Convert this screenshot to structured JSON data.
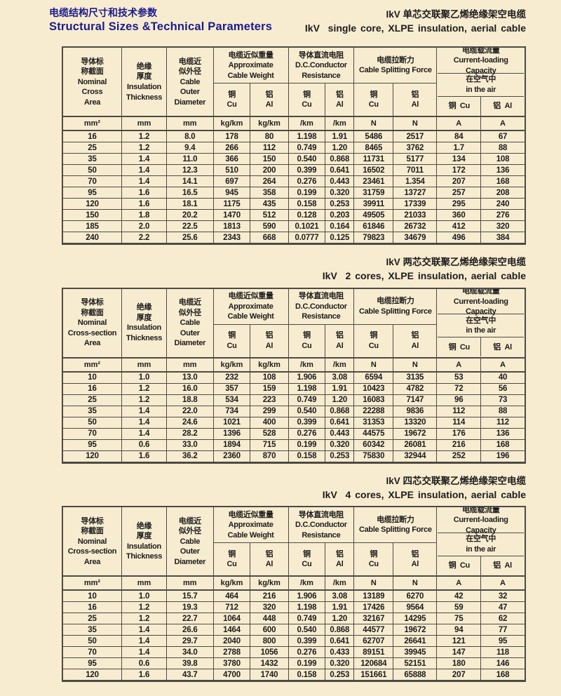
{
  "page": {
    "title_zh": "电缆结构尺寸和技术参数",
    "title_en": "Structural Sizes &Technical Parameters"
  },
  "sections": [
    {
      "title_zh": "IkV 单芯交联聚乙烯绝缘架空电缆",
      "title_en": "IkV  single core, XLPE insulation, aerial cable",
      "header": {
        "nominal": "导体标\n称截面\nNominal\nCross\nArea",
        "insulation": "绝缘\n厚度\nInsulation\nThickness",
        "diameter": "电缆近\n似外径\nCable\nOuter\nDiameter",
        "weight_group": "电缆近似重量\nApproximate\nCable Weight",
        "resistance_group": "导体直流电阻\nD.C.Conductor\nResistance",
        "force_group": "电缆拉断力\nCable Splitting Force",
        "capacity_group": "电缆载流量\nCurrent-loading Capacity",
        "in_air": "在空气中\nin the air",
        "cu": "铜\nCu",
        "al": "铝\nAl",
        "cu_inline": "铜  Cu",
        "al_inline": "铝  Al",
        "units": [
          "mm²",
          "mm",
          "mm",
          "kg/km",
          "kg/km",
          "/km",
          "/km",
          "N",
          "N",
          "A",
          "A"
        ]
      },
      "rows": [
        [
          "16",
          "1.2",
          "8.0",
          "178",
          "80",
          "1.198",
          "1.91",
          "5486",
          "2517",
          "84",
          "67"
        ],
        [
          "25",
          "1.2",
          "9.4",
          "266",
          "112",
          "0.749",
          "1.20",
          "8465",
          "3762",
          "1.7",
          "88"
        ],
        [
          "35",
          "1.4",
          "11.0",
          "366",
          "150",
          "0.540",
          "0.868",
          "11731",
          "5177",
          "134",
          "108"
        ],
        [
          "50",
          "1.4",
          "12.3",
          "510",
          "200",
          "0.399",
          "0.641",
          "16502",
          "7011",
          "172",
          "136"
        ],
        [
          "70",
          "1.4",
          "14.1",
          "697",
          "264",
          "0.276",
          "0.443",
          "23461",
          "1.354",
          "207",
          "168"
        ],
        [
          "95",
          "1.6",
          "16.5",
          "945",
          "358",
          "0.199",
          "0.320",
          "31759",
          "13727",
          "257",
          "208"
        ],
        [
          "120",
          "1.6",
          "18.1",
          "1175",
          "435",
          "0.158",
          "0.253",
          "39911",
          "17339",
          "295",
          "240"
        ],
        [
          "150",
          "1.8",
          "20.2",
          "1470",
          "512",
          "0.128",
          "0.203",
          "49505",
          "21033",
          "360",
          "276"
        ],
        [
          "185",
          "2.0",
          "22.5",
          "1813",
          "590",
          "0.1021",
          "0.164",
          "61846",
          "26732",
          "412",
          "320"
        ],
        [
          "240",
          "2.2",
          "25.6",
          "2343",
          "668",
          "0.0777",
          "0.125",
          "79823",
          "34679",
          "496",
          "384"
        ]
      ]
    },
    {
      "title_zh": "IkV 两芯交联聚乙烯绝缘架空电缆",
      "title_en": "IkV  2 cores, XLPE insulation, aerial cable",
      "header": {
        "nominal": "导体标\n称截面\nNominal\nCross-section\nArea",
        "insulation": "绝缘\n厚度\nInsulation\nThickness",
        "diameter": "电缆近\n似外径\nCable\nOuter\nDiameter",
        "weight_group": "电缆近似重量\nApproximate\nCable Weight",
        "resistance_group": "导体直流电阻\nD.C.Conductor\nResistance",
        "force_group": "电缆拉断力\nCable Splitting Force",
        "capacity_group": "电缆载流量\nCurrent-loading Capacity",
        "in_air": "在空气中\nin the air",
        "cu": "铜\nCu",
        "al": "铝\nAl",
        "cu_inline": "铜  Cu",
        "al_inline": "铝  Al",
        "units": [
          "mm²",
          "mm",
          "mm",
          "kg/km",
          "kg/km",
          "/km",
          "/km",
          "N",
          "N",
          "A",
          "A"
        ]
      },
      "rows": [
        [
          "10",
          "1.0",
          "13.0",
          "232",
          "108",
          "1.906",
          "3.08",
          "6594",
          "3135",
          "53",
          "40"
        ],
        [
          "16",
          "1.2",
          "16.0",
          "357",
          "159",
          "1.198",
          "1.91",
          "10423",
          "4782",
          "72",
          "56"
        ],
        [
          "25",
          "1.2",
          "18.8",
          "534",
          "223",
          "0.749",
          "1.20",
          "16083",
          "7147",
          "96",
          "73"
        ],
        [
          "35",
          "1.4",
          "22.0",
          "734",
          "299",
          "0.540",
          "0.868",
          "22288",
          "9836",
          "112",
          "88"
        ],
        [
          "50",
          "1.4",
          "24.6",
          "1021",
          "400",
          "0.399",
          "0.641",
          "31353",
          "13320",
          "114",
          "112"
        ],
        [
          "70",
          "1.4",
          "28.2",
          "1396",
          "528",
          "0.276",
          "0.443",
          "44575",
          "19672",
          "176",
          "136"
        ],
        [
          "95",
          "0.6",
          "33.0",
          "1894",
          "715",
          "0.199",
          "0.320",
          "60342",
          "26081",
          "216",
          "168"
        ],
        [
          "120",
          "1.6",
          "36.2",
          "2360",
          "870",
          "0.158",
          "0.253",
          "75830",
          "32944",
          "252",
          "196"
        ]
      ]
    },
    {
      "title_zh": "IkV 四芯交联聚乙烯绝缘架空电缆",
      "title_en": "IkV  4 cores, XLPE insulation, aerial cable",
      "header": {
        "nominal": "导体标\n称截面\nNominal\nCross-section\nArea",
        "insulation": "绝缘\n厚度\nInsulation\nThickness",
        "diameter": "电缆近\n似外径\nCable\nOuter\nDiameter",
        "weight_group": "电缆近似重量\nApproximate\nCable Weight",
        "resistance_group": "导体直流电阻\nD.C.Conductor\nResistance",
        "force_group": "电缆拉断力\nCable Splitting Force",
        "capacity_group": "电缆载流量\nCurrent-loading Capacity",
        "in_air": "在空气中\nin the air",
        "cu": "铜\nCu",
        "al": "铝\nAl",
        "cu_inline": "铜  Cu",
        "al_inline": "铝  Al",
        "units": [
          "mm²",
          "mm",
          "mm",
          "kg/km",
          "kg/km",
          "/km",
          "/km",
          "N",
          "N",
          "A",
          "A"
        ]
      },
      "rows": [
        [
          "10",
          "1.0",
          "15.7",
          "464",
          "216",
          "1.906",
          "3.08",
          "13189",
          "6270",
          "42",
          "32"
        ],
        [
          "16",
          "1.2",
          "19.3",
          "712",
          "320",
          "1.198",
          "1.91",
          "17426",
          "9564",
          "59",
          "47"
        ],
        [
          "25",
          "1.2",
          "22.7",
          "1064",
          "448",
          "0.749",
          "1.20",
          "32167",
          "14295",
          "75",
          "62"
        ],
        [
          "35",
          "1.4",
          "26.6",
          "1464",
          "600",
          "0.540",
          "0.868",
          "44577",
          "19672",
          "94",
          "77"
        ],
        [
          "50",
          "1.4",
          "29.7",
          "2040",
          "800",
          "0.399",
          "0.641",
          "62707",
          "26641",
          "121",
          "95"
        ],
        [
          "70",
          "1.4",
          "34.0",
          "2788",
          "1056",
          "0.276",
          "0.433",
          "89151",
          "39945",
          "147",
          "118"
        ],
        [
          "95",
          "0.6",
          "39.8",
          "3780",
          "1432",
          "0.199",
          "0.320",
          "120684",
          "52151",
          "180",
          "146"
        ],
        [
          "120",
          "1.6",
          "43.7",
          "4700",
          "1740",
          "0.158",
          "0.253",
          "151661",
          "65888",
          "207",
          "168"
        ]
      ]
    }
  ]
}
